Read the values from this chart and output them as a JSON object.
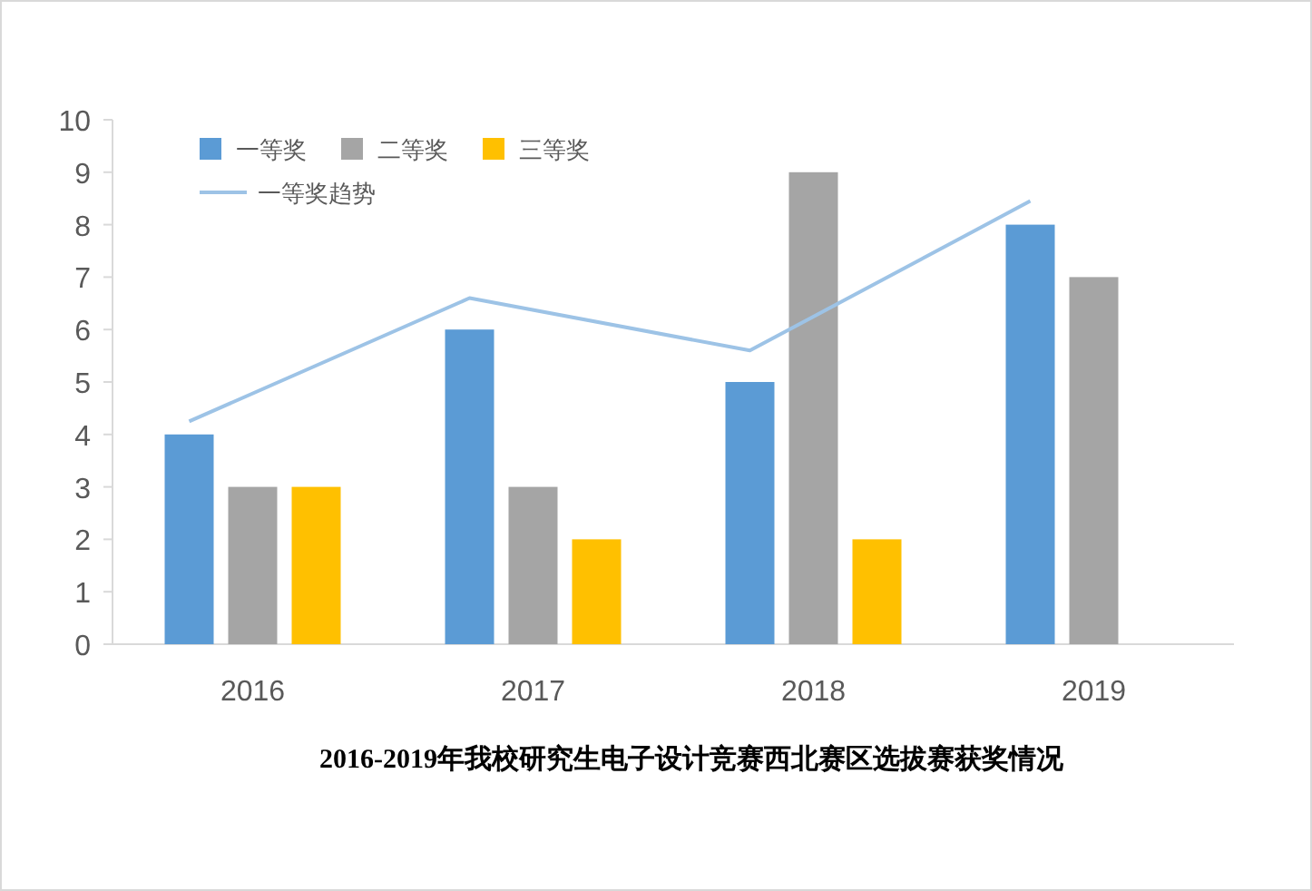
{
  "chart_data": {
    "type": "bar",
    "title": "2016-2019年我校研究生电子设计竞赛西北赛区选拔赛获奖情况",
    "categories": [
      "2016",
      "2017",
      "2018",
      "2019"
    ],
    "series": [
      {
        "name": "一等奖",
        "color": "#5b9bd5",
        "values": [
          4,
          6,
          5,
          8
        ]
      },
      {
        "name": "二等奖",
        "color": "#a5a5a5",
        "values": [
          3,
          3,
          9,
          7
        ]
      },
      {
        "name": "三等奖",
        "color": "#ffc000",
        "values": [
          3,
          2,
          2,
          null
        ]
      },
      {
        "name": "一等奖趋势",
        "type": "line",
        "color": "#9dc3e6",
        "values": [
          4.25,
          6.6,
          5.6,
          8.45
        ]
      }
    ],
    "ylim": [
      0,
      10
    ],
    "yticks": [
      0,
      1,
      2,
      3,
      4,
      5,
      6,
      7,
      8,
      9,
      10
    ],
    "grid": false,
    "legend": "top left"
  }
}
